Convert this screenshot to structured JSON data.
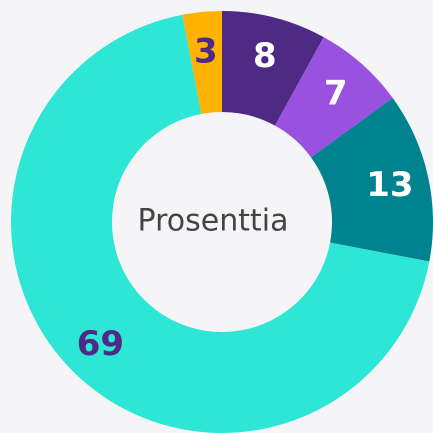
{
  "chart_data": {
    "type": "donut",
    "center_label": "Prosenttia",
    "values": [
      8,
      7,
      13,
      69,
      3
    ],
    "colors": [
      "#4e2a84",
      "#9b51e0",
      "#00838f",
      "#2ee6d6",
      "#ffb300"
    ],
    "label_colors": [
      "#ffffff",
      "#ffffff",
      "#ffffff",
      "#4e2a84",
      "#4e2a84"
    ]
  }
}
